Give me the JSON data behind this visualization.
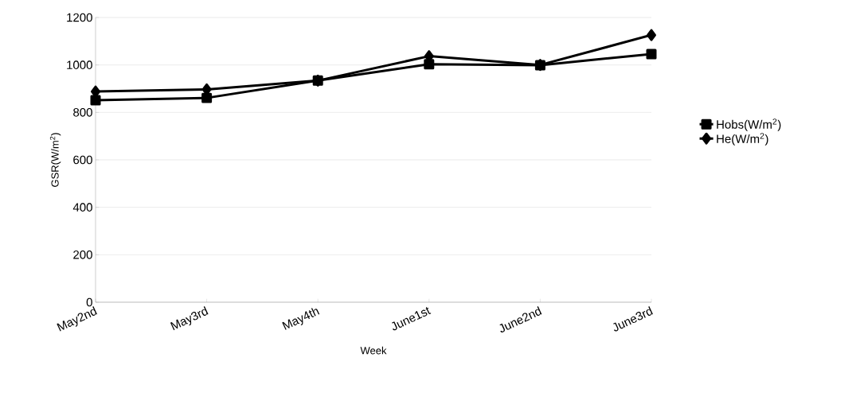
{
  "chart_data": {
    "type": "line",
    "xlabel": "Week",
    "ylabel": "GSR(W/m$^{2}$)",
    "categories": [
      "May2nd",
      "May3rd",
      "May4th",
      "June1st",
      "June2nd",
      "June3rd"
    ],
    "series": [
      {
        "name": "Hobs(W/m$^{2}$)",
        "color": "#000000",
        "marker": "square",
        "values": [
          851,
          861,
          934,
          1003,
          999,
          1046
        ]
      },
      {
        "name": "He(W/m$^{2}$)",
        "color": "#000000",
        "marker": "diamond",
        "values": [
          888,
          897,
          934,
          1037,
          1000,
          1126
        ]
      }
    ],
    "ylim": [
      0,
      1200
    ],
    "yticks": [
      0,
      200,
      400,
      600,
      800,
      1000,
      1200
    ],
    "grid": "y",
    "legend": "right"
  }
}
